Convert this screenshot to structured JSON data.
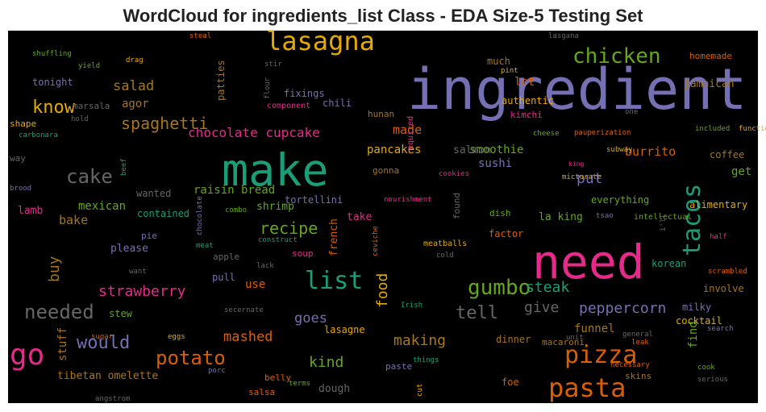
{
  "chart_data": {
    "type": "wordcloud",
    "title": "WordCloud for ingredients_list Class - EDA Size-5 Testing Set",
    "words": [
      {
        "text": "ingredient",
        "color": "#7570b3"
      },
      {
        "text": "make",
        "color": "#1b9e77"
      },
      {
        "text": "need",
        "color": "#e7298a"
      },
      {
        "text": "lasagna",
        "color": "#e6ab02"
      },
      {
        "text": "chicken",
        "color": "#66a61e"
      },
      {
        "text": "tacos",
        "color": "#1b9e77"
      },
      {
        "text": "pizza",
        "color": "#d95f02"
      },
      {
        "text": "pasta",
        "color": "#d95f02"
      },
      {
        "text": "gumbo",
        "color": "#66a61e"
      },
      {
        "text": "list",
        "color": "#1b9e77"
      },
      {
        "text": "go",
        "color": "#e7298a"
      },
      {
        "text": "cake",
        "color": "#666666"
      },
      {
        "text": "needed",
        "color": "#666666"
      },
      {
        "text": "potato",
        "color": "#d95f02"
      },
      {
        "text": "would",
        "color": "#7570b3"
      },
      {
        "text": "know",
        "color": "#e6ab02"
      },
      {
        "text": "spaghetti",
        "color": "#a6761d"
      },
      {
        "text": "salad",
        "color": "#a6761d"
      },
      {
        "text": "chocolate cupcake",
        "color": "#e7298a"
      },
      {
        "text": "recipe",
        "color": "#66a61e"
      },
      {
        "text": "strawberry",
        "color": "#e7298a"
      },
      {
        "text": "tell",
        "color": "#666666"
      },
      {
        "text": "give",
        "color": "#666666"
      },
      {
        "text": "peppercorn",
        "color": "#7570b3"
      },
      {
        "text": "steak",
        "color": "#1b9e77"
      },
      {
        "text": "making",
        "color": "#a6761d"
      },
      {
        "text": "kind",
        "color": "#66a61e"
      },
      {
        "text": "mashed",
        "color": "#d95f02"
      },
      {
        "text": "goes",
        "color": "#7570b3"
      },
      {
        "text": "food",
        "color": "#e6ab02"
      },
      {
        "text": "buy",
        "color": "#a6761d"
      },
      {
        "text": "put",
        "color": "#7570b3"
      },
      {
        "text": "burrito",
        "color": "#d95f02"
      },
      {
        "text": "smoothie",
        "color": "#66a61e"
      },
      {
        "text": "made",
        "color": "#d95f02"
      },
      {
        "text": "pancakes",
        "color": "#e6ab02"
      },
      {
        "text": "salmon",
        "color": "#666666"
      },
      {
        "text": "sushi",
        "color": "#7570b3"
      },
      {
        "text": "raisin bread",
        "color": "#66a61e"
      },
      {
        "text": "mexican",
        "color": "#66a61e"
      },
      {
        "text": "bake",
        "color": "#a6761d"
      },
      {
        "text": "lamb",
        "color": "#e7298a"
      },
      {
        "text": "wanted",
        "color": "#666666"
      },
      {
        "text": "contained",
        "color": "#1b9e77"
      },
      {
        "text": "shrimp",
        "color": "#66a61e"
      },
      {
        "text": "tortellini",
        "color": "#7570b3"
      },
      {
        "text": "take",
        "color": "#e7298a"
      },
      {
        "text": "french",
        "color": "#d95f02"
      },
      {
        "text": "la king",
        "color": "#66a61e"
      },
      {
        "text": "everything",
        "color": "#66a61e"
      },
      {
        "text": "alimentary",
        "color": "#e6ab02"
      },
      {
        "text": "jamaican",
        "color": "#a6761d"
      },
      {
        "text": "homemade",
        "color": "#d95f02"
      },
      {
        "text": "let",
        "color": "#d95f02"
      },
      {
        "text": "authentic",
        "color": "#e6ab02"
      },
      {
        "text": "much",
        "color": "#a6761d"
      },
      {
        "text": "agor",
        "color": "#a6761d"
      },
      {
        "text": "tonight",
        "color": "#7570b3"
      },
      {
        "text": "marsala",
        "color": "#666666"
      },
      {
        "text": "shape",
        "color": "#e6ab02"
      },
      {
        "text": "fixings",
        "color": "#7570b3"
      },
      {
        "text": "chili",
        "color": "#7570b3"
      },
      {
        "text": "component",
        "color": "#e7298a"
      },
      {
        "text": "patties",
        "color": "#a6761d"
      },
      {
        "text": "flour",
        "color": "#666666"
      },
      {
        "text": "hunan",
        "color": "#a6761d"
      },
      {
        "text": "required",
        "color": "#e7298a"
      },
      {
        "text": "kimchi",
        "color": "#e7298a"
      },
      {
        "text": "cheese",
        "color": "#66a61e"
      },
      {
        "text": "pauperization",
        "color": "#d95f02"
      },
      {
        "text": "included",
        "color": "#66a61e"
      },
      {
        "text": "function",
        "color": "#e6ab02"
      },
      {
        "text": "coffee",
        "color": "#a6761d"
      },
      {
        "text": "get",
        "color": "#66a61e"
      },
      {
        "text": "subway",
        "color": "#e6ab02"
      },
      {
        "text": "king",
        "color": "#e7298a"
      },
      {
        "text": "micturate",
        "color": "#e6ab02"
      },
      {
        "text": "gonna",
        "color": "#a6761d"
      },
      {
        "text": "cookies",
        "color": "#e7298a"
      },
      {
        "text": "found",
        "color": "#666666"
      },
      {
        "text": "nourishment",
        "color": "#e7298a"
      },
      {
        "text": "dish",
        "color": "#66a61e"
      },
      {
        "text": "factor",
        "color": "#d95f02"
      },
      {
        "text": "tsao",
        "color": "#7570b3"
      },
      {
        "text": "intellectual",
        "color": "#66a61e"
      },
      {
        "text": "korean",
        "color": "#1b9e77"
      },
      {
        "text": "involve",
        "color": "#a6761d"
      },
      {
        "text": "milky",
        "color": "#7570b3"
      },
      {
        "text": "cocktail",
        "color": "#e6ab02"
      },
      {
        "text": "funnel",
        "color": "#a6761d"
      },
      {
        "text": "find",
        "color": "#66a61e"
      },
      {
        "text": "macaroni",
        "color": "#a6761d"
      },
      {
        "text": "dinner",
        "color": "#a6761d"
      },
      {
        "text": "unit",
        "color": "#666666"
      },
      {
        "text": "general",
        "color": "#666666"
      },
      {
        "text": "leak",
        "color": "#d95f02"
      },
      {
        "text": "search",
        "color": "#7570b3"
      },
      {
        "text": "necessary",
        "color": "#d95f02"
      },
      {
        "text": "skins",
        "color": "#a6761d"
      },
      {
        "text": "cook",
        "color": "#66a61e"
      },
      {
        "text": "serious",
        "color": "#666666"
      },
      {
        "text": "foe",
        "color": "#d95f02"
      },
      {
        "text": "half",
        "color": "#e7298a"
      },
      {
        "text": "scrambled",
        "color": "#d95f02"
      },
      {
        "text": "i'll",
        "color": "#666666"
      },
      {
        "text": "pie",
        "color": "#7570b3"
      },
      {
        "text": "please",
        "color": "#7570b3"
      },
      {
        "text": "apple",
        "color": "#666666"
      },
      {
        "text": "lack",
        "color": "#666666"
      },
      {
        "text": "soup",
        "color": "#e7298a"
      },
      {
        "text": "ceviche",
        "color": "#d95f02"
      },
      {
        "text": "meatballs",
        "color": "#e6ab02"
      },
      {
        "text": "cold",
        "color": "#666666"
      },
      {
        "text": "construct",
        "color": "#1b9e77"
      },
      {
        "text": "combo",
        "color": "#66a61e"
      },
      {
        "text": "chocolate",
        "color": "#7570b3"
      },
      {
        "text": "meat",
        "color": "#1b9e77"
      },
      {
        "text": "beef",
        "color": "#1b9e77"
      },
      {
        "text": "brood",
        "color": "#7570b3"
      },
      {
        "text": "way",
        "color": "#666666"
      },
      {
        "text": "want",
        "color": "#666666"
      },
      {
        "text": "pull",
        "color": "#7570b3"
      },
      {
        "text": "use",
        "color": "#d95f02"
      },
      {
        "text": "stew",
        "color": "#66a61e"
      },
      {
        "text": "stuff",
        "color": "#a6761d"
      },
      {
        "text": "tibetan omelette",
        "color": "#a6761d"
      },
      {
        "text": "sugar",
        "color": "#d95f02"
      },
      {
        "text": "eggs",
        "color": "#e6ab02"
      },
      {
        "text": "angstrom",
        "color": "#666666"
      },
      {
        "text": "porc",
        "color": "#7570b3"
      },
      {
        "text": "belly",
        "color": "#d95f02"
      },
      {
        "text": "salsa",
        "color": "#d95f02"
      },
      {
        "text": "terms",
        "color": "#66a61e"
      },
      {
        "text": "dough",
        "color": "#666666"
      },
      {
        "text": "lasagne",
        "color": "#e6ab02"
      },
      {
        "text": "paste",
        "color": "#7570b3"
      },
      {
        "text": "things",
        "color": "#1b9e77"
      },
      {
        "text": "cut",
        "color": "#e6ab02"
      },
      {
        "text": "Irish",
        "color": "#1b9e77"
      },
      {
        "text": "secernate",
        "color": "#666666"
      },
      {
        "text": "steal",
        "color": "#d95f02"
      },
      {
        "text": "lasgana",
        "color": "#666666"
      },
      {
        "text": "one",
        "color": "#666666"
      },
      {
        "text": "pint",
        "color": "#e6ab02"
      },
      {
        "text": "stir",
        "color": "#666666"
      },
      {
        "text": "shuffling",
        "color": "#66a61e"
      },
      {
        "text": "yield",
        "color": "#66a61e"
      },
      {
        "text": "drag",
        "color": "#e6ab02"
      },
      {
        "text": "hold",
        "color": "#666666"
      },
      {
        "text": "carbonara",
        "color": "#1b9e77"
      }
    ]
  }
}
